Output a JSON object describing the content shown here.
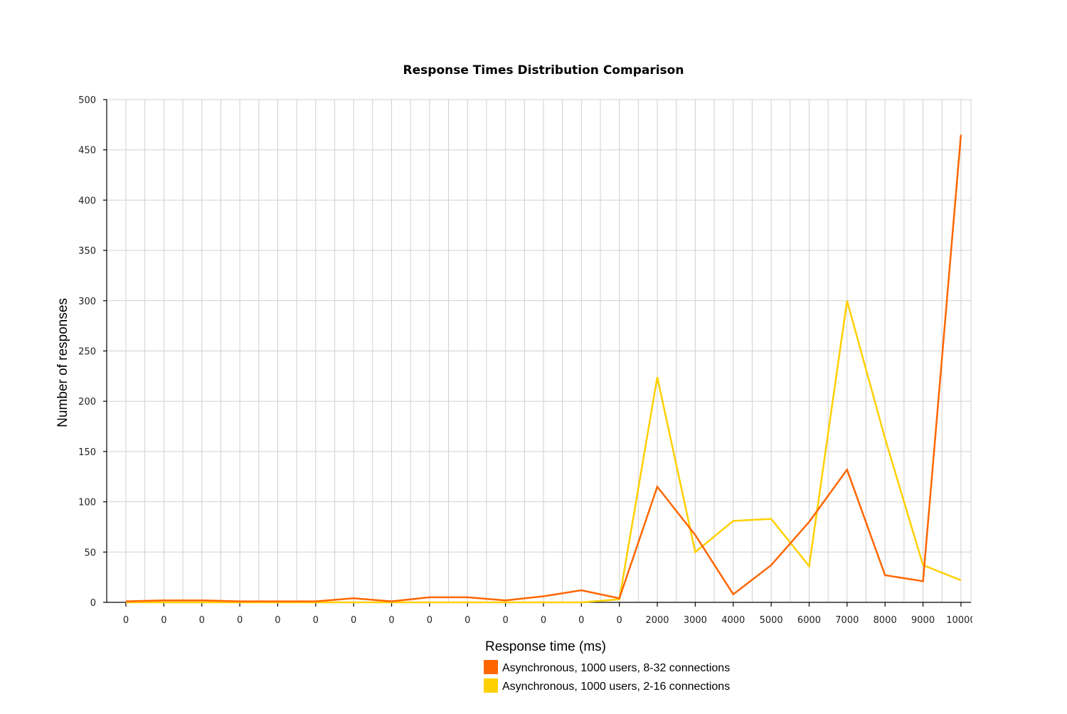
{
  "chart_data": {
    "type": "line",
    "title": "Response Times Distribution Comparison",
    "xlabel": "Response time (ms)",
    "ylabel": "Number of responses",
    "ylim": [
      0,
      500
    ],
    "yticks": [
      0,
      50,
      100,
      150,
      200,
      250,
      300,
      350,
      400,
      450,
      500
    ],
    "grid": true,
    "legend_position": "bottom",
    "categories": [
      "0",
      "0",
      "0",
      "0",
      "0",
      "0",
      "0",
      "0",
      "0",
      "0",
      "0",
      "0",
      "0",
      "0",
      "2000",
      "3000",
      "4000",
      "5000",
      "6000",
      "7000",
      "8000",
      "9000",
      "10000"
    ],
    "series": [
      {
        "name": "Asynchronous, 1000 users, 8-32 connections",
        "color": "#ff6600",
        "values": [
          1,
          2,
          2,
          1,
          1,
          1,
          4,
          1,
          5,
          5,
          2,
          6,
          12,
          4,
          115,
          67,
          8,
          37,
          80,
          132,
          27,
          21,
          465
        ]
      },
      {
        "name": "Asynchronous, 1000 users, 2-16 connections",
        "color": "#ffd000",
        "values": [
          0,
          0,
          0,
          0,
          0,
          0,
          0,
          0,
          0,
          0,
          0,
          0,
          0,
          3,
          224,
          50,
          81,
          83,
          36,
          300,
          163,
          37,
          22
        ]
      }
    ]
  }
}
